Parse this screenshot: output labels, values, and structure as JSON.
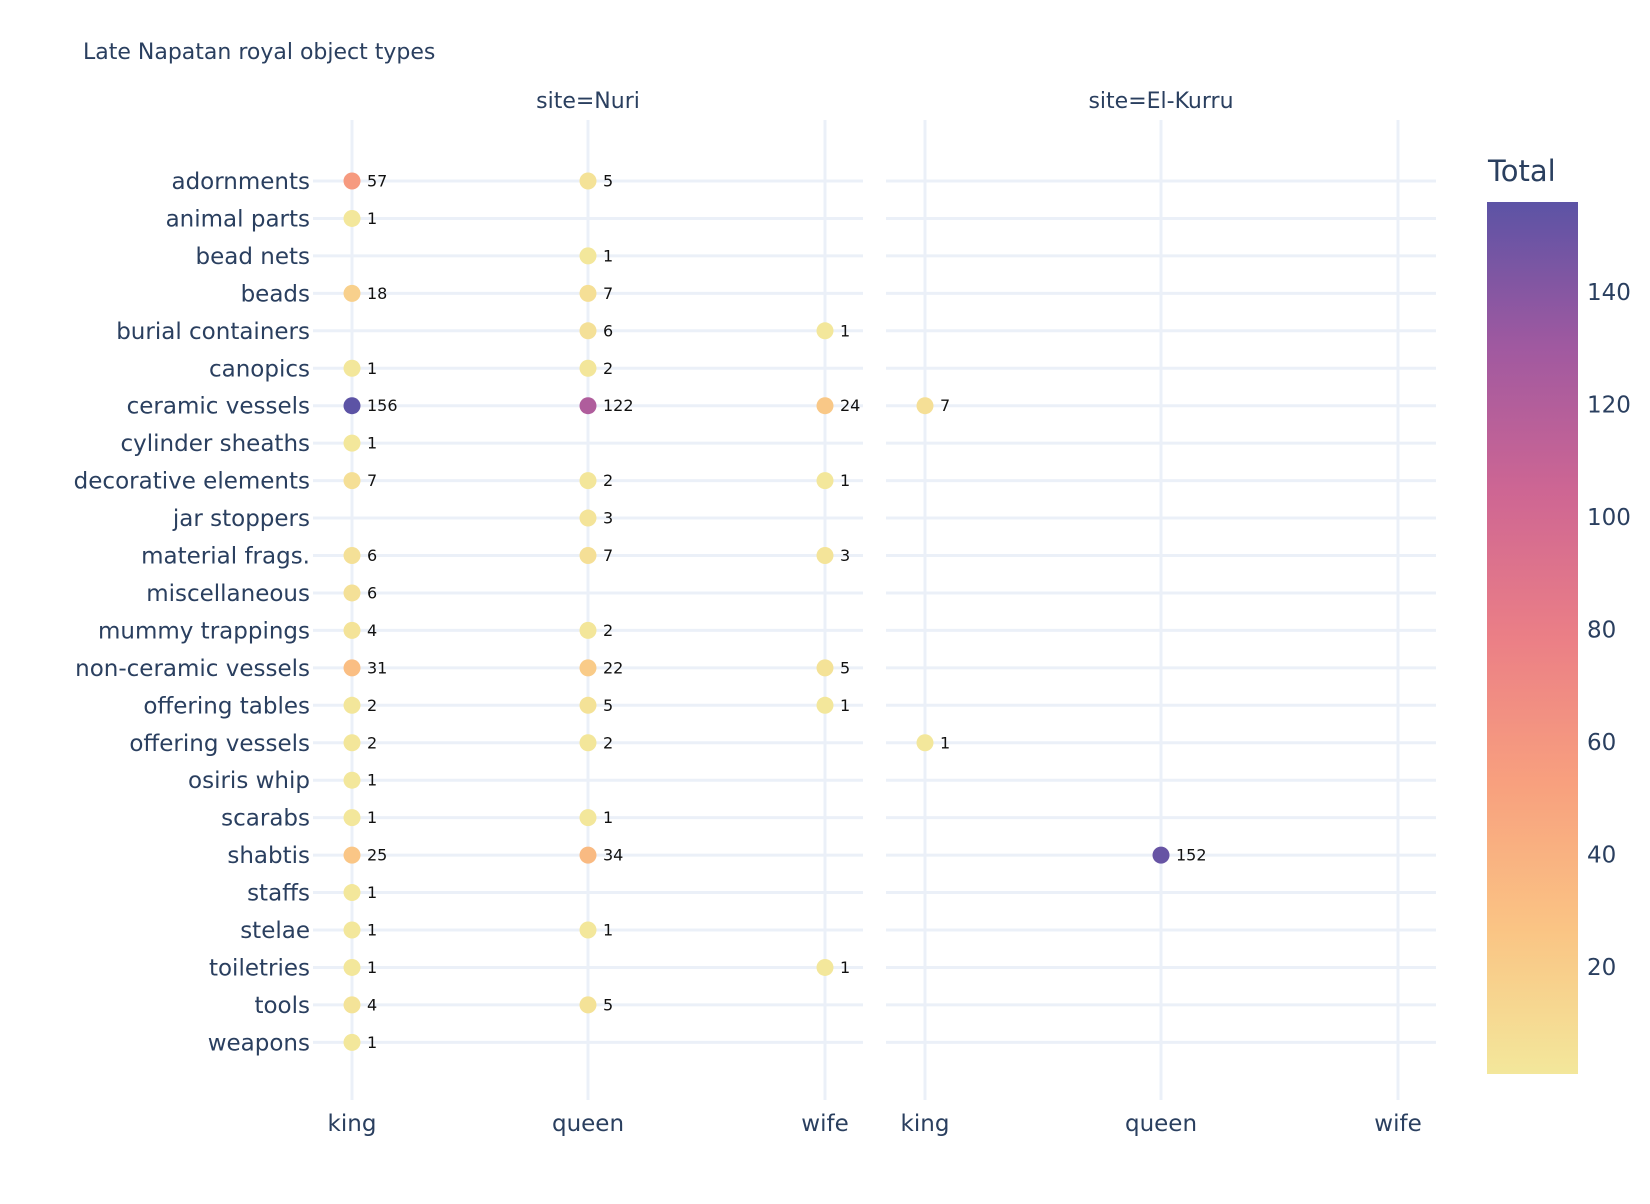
{
  "chart_data": {
    "type": "scatter",
    "title": "Late Napatan royal object types",
    "facets": [
      "site=Nuri",
      "site=El-Kurru"
    ],
    "x_categories": [
      "king",
      "queen",
      "wife"
    ],
    "y_categories": [
      "adornments",
      "animal parts",
      "bead nets",
      "beads",
      "burial containers",
      "canopics",
      "ceramic vessels",
      "cylinder sheaths",
      "decorative elements",
      "jar stoppers",
      "material frags.",
      "miscellaneous",
      "mummy trappings",
      "non-ceramic vessels",
      "offering tables",
      "offering vessels",
      "osiris whip",
      "scarabs",
      "shabtis",
      "staffs",
      "stelae",
      "toiletries",
      "tools",
      "weapons"
    ],
    "colorbar": {
      "title": "Total",
      "min": 1,
      "max": 156,
      "ticks": [
        20,
        40,
        60,
        80,
        100,
        120,
        140
      ],
      "colors": [
        "#f3e79b",
        "#fac484",
        "#f8a07e",
        "#eb7f86",
        "#ce6693",
        "#a059a0",
        "#5c53a5"
      ]
    },
    "points": [
      {
        "site": "Nuri",
        "x": "king",
        "y": "adornments",
        "value": 57
      },
      {
        "site": "Nuri",
        "x": "queen",
        "y": "adornments",
        "value": 5
      },
      {
        "site": "Nuri",
        "x": "king",
        "y": "animal parts",
        "value": 1
      },
      {
        "site": "Nuri",
        "x": "queen",
        "y": "bead nets",
        "value": 1
      },
      {
        "site": "Nuri",
        "x": "king",
        "y": "beads",
        "value": 18
      },
      {
        "site": "Nuri",
        "x": "queen",
        "y": "beads",
        "value": 7
      },
      {
        "site": "Nuri",
        "x": "queen",
        "y": "burial containers",
        "value": 6
      },
      {
        "site": "Nuri",
        "x": "wife",
        "y": "burial containers",
        "value": 1
      },
      {
        "site": "Nuri",
        "x": "king",
        "y": "canopics",
        "value": 1
      },
      {
        "site": "Nuri",
        "x": "queen",
        "y": "canopics",
        "value": 2
      },
      {
        "site": "Nuri",
        "x": "king",
        "y": "ceramic vessels",
        "value": 156
      },
      {
        "site": "Nuri",
        "x": "queen",
        "y": "ceramic vessels",
        "value": 122
      },
      {
        "site": "Nuri",
        "x": "wife",
        "y": "ceramic vessels",
        "value": 24
      },
      {
        "site": "El-Kurru",
        "x": "king",
        "y": "ceramic vessels",
        "value": 7
      },
      {
        "site": "Nuri",
        "x": "king",
        "y": "cylinder sheaths",
        "value": 1
      },
      {
        "site": "Nuri",
        "x": "king",
        "y": "decorative elements",
        "value": 7
      },
      {
        "site": "Nuri",
        "x": "queen",
        "y": "decorative elements",
        "value": 2
      },
      {
        "site": "Nuri",
        "x": "wife",
        "y": "decorative elements",
        "value": 1
      },
      {
        "site": "Nuri",
        "x": "queen",
        "y": "jar stoppers",
        "value": 3
      },
      {
        "site": "Nuri",
        "x": "king",
        "y": "material frags.",
        "value": 6
      },
      {
        "site": "Nuri",
        "x": "queen",
        "y": "material frags.",
        "value": 7
      },
      {
        "site": "Nuri",
        "x": "wife",
        "y": "material frags.",
        "value": 3
      },
      {
        "site": "Nuri",
        "x": "king",
        "y": "miscellaneous",
        "value": 6
      },
      {
        "site": "Nuri",
        "x": "king",
        "y": "mummy trappings",
        "value": 4
      },
      {
        "site": "Nuri",
        "x": "queen",
        "y": "mummy trappings",
        "value": 2
      },
      {
        "site": "Nuri",
        "x": "king",
        "y": "non-ceramic vessels",
        "value": 31
      },
      {
        "site": "Nuri",
        "x": "queen",
        "y": "non-ceramic vessels",
        "value": 22
      },
      {
        "site": "Nuri",
        "x": "wife",
        "y": "non-ceramic vessels",
        "value": 5
      },
      {
        "site": "Nuri",
        "x": "king",
        "y": "offering tables",
        "value": 2
      },
      {
        "site": "Nuri",
        "x": "queen",
        "y": "offering tables",
        "value": 5
      },
      {
        "site": "Nuri",
        "x": "wife",
        "y": "offering tables",
        "value": 1
      },
      {
        "site": "Nuri",
        "x": "king",
        "y": "offering vessels",
        "value": 2
      },
      {
        "site": "Nuri",
        "x": "queen",
        "y": "offering vessels",
        "value": 2
      },
      {
        "site": "El-Kurru",
        "x": "king",
        "y": "offering vessels",
        "value": 1
      },
      {
        "site": "Nuri",
        "x": "king",
        "y": "osiris whip",
        "value": 1
      },
      {
        "site": "Nuri",
        "x": "king",
        "y": "scarabs",
        "value": 1
      },
      {
        "site": "Nuri",
        "x": "queen",
        "y": "scarabs",
        "value": 1
      },
      {
        "site": "Nuri",
        "x": "king",
        "y": "shabtis",
        "value": 25
      },
      {
        "site": "Nuri",
        "x": "queen",
        "y": "shabtis",
        "value": 34
      },
      {
        "site": "El-Kurru",
        "x": "queen",
        "y": "shabtis",
        "value": 152
      },
      {
        "site": "Nuri",
        "x": "king",
        "y": "staffs",
        "value": 1
      },
      {
        "site": "Nuri",
        "x": "king",
        "y": "stelae",
        "value": 1
      },
      {
        "site": "Nuri",
        "x": "queen",
        "y": "stelae",
        "value": 1
      },
      {
        "site": "Nuri",
        "x": "king",
        "y": "toiletries",
        "value": 1
      },
      {
        "site": "Nuri",
        "x": "wife",
        "y": "toiletries",
        "value": 1
      },
      {
        "site": "Nuri",
        "x": "king",
        "y": "tools",
        "value": 4
      },
      {
        "site": "Nuri",
        "x": "queen",
        "y": "tools",
        "value": 5
      },
      {
        "site": "Nuri",
        "x": "king",
        "y": "weapons",
        "value": 1
      }
    ],
    "grid": true
  }
}
